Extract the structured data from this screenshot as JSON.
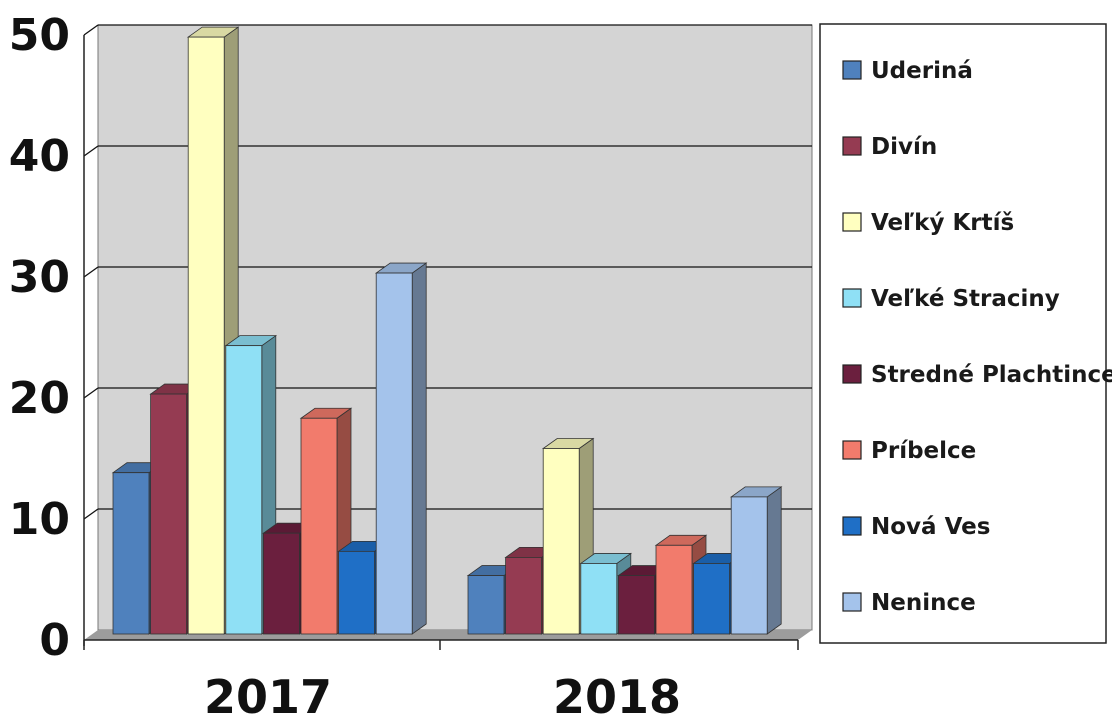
{
  "chart_data": {
    "type": "bar",
    "categories": [
      "2017",
      "2018"
    ],
    "series": [
      {
        "name": "Uderiná",
        "values": [
          13,
          4.5
        ],
        "color": "#4F81BD"
      },
      {
        "name": "Divín",
        "values": [
          19.5,
          6
        ],
        "color": "#953B52"
      },
      {
        "name": "Veľký Krtíš",
        "values": [
          49,
          15
        ],
        "color": "#FFFFC0"
      },
      {
        "name": "Veľké Straciny",
        "values": [
          23.5,
          5.5
        ],
        "color": "#8FE0F5"
      },
      {
        "name": "Stredné Plachtince",
        "values": [
          8,
          4.5
        ],
        "color": "#6B1F3E"
      },
      {
        "name": "Príbelce",
        "values": [
          17.5,
          7
        ],
        "color": "#F27B6C"
      },
      {
        "name": "Nová Ves",
        "values": [
          6.5,
          5.5
        ],
        "color": "#1F6FC6"
      },
      {
        "name": "Nenince",
        "values": [
          29.5,
          11
        ],
        "color": "#A4C3EB"
      }
    ],
    "y_ticks": [
      "0",
      "10",
      "20",
      "30",
      "40",
      "50"
    ],
    "ylim": [
      0,
      50
    ],
    "grid": true,
    "legend_position": "right",
    "wall_color": "#D4D4D4"
  }
}
